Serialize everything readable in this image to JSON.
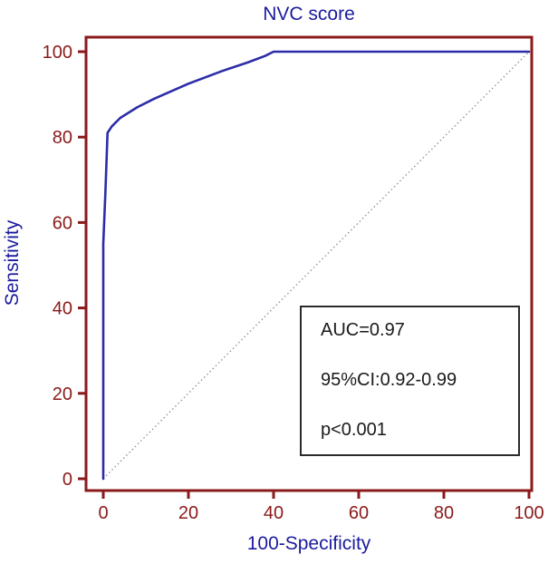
{
  "title": "NVC score",
  "axes": {
    "x_label": "100-Specificity",
    "y_label": "Sensitivity",
    "x_ticks": [
      0,
      20,
      40,
      60,
      80,
      100
    ],
    "y_ticks": [
      0,
      20,
      40,
      60,
      80,
      100
    ]
  },
  "annotation": {
    "lines": [
      "AUC=0.97",
      "95%CI:0.92-0.99",
      "p<0.001"
    ]
  },
  "colors": {
    "axis": "#8b1a1a",
    "tick_label": "#8b1a1a",
    "title_text": "#1b1b9e",
    "curve": "#2c2ca8",
    "diagonal": "#8f8f8f",
    "annotation_text": "#1a1a1a",
    "annotation_border": "#2b2b2b"
  },
  "chart_data": {
    "type": "line",
    "title": "NVC score",
    "xlabel": "100-Specificity",
    "ylabel": "Sensitivity",
    "xlim": [
      0,
      100
    ],
    "ylim": [
      0,
      100
    ],
    "grid": false,
    "legend_position": "none",
    "series": [
      {
        "name": "ROC curve (NVC score)",
        "x": [
          0,
          0,
          0.5,
          1,
          2,
          4,
          8,
          12,
          20,
          28,
          34,
          38,
          40,
          100
        ],
        "y": [
          0,
          55,
          67,
          81,
          82.5,
          84.5,
          87,
          89,
          92.5,
          95.5,
          97.5,
          99,
          100,
          100
        ]
      },
      {
        "name": "reference diagonal",
        "x": [
          0,
          100
        ],
        "y": [
          0,
          100
        ]
      }
    ],
    "stats": {
      "AUC": "0.97",
      "CI95": "0.92-0.99",
      "p": "<0.001"
    }
  }
}
